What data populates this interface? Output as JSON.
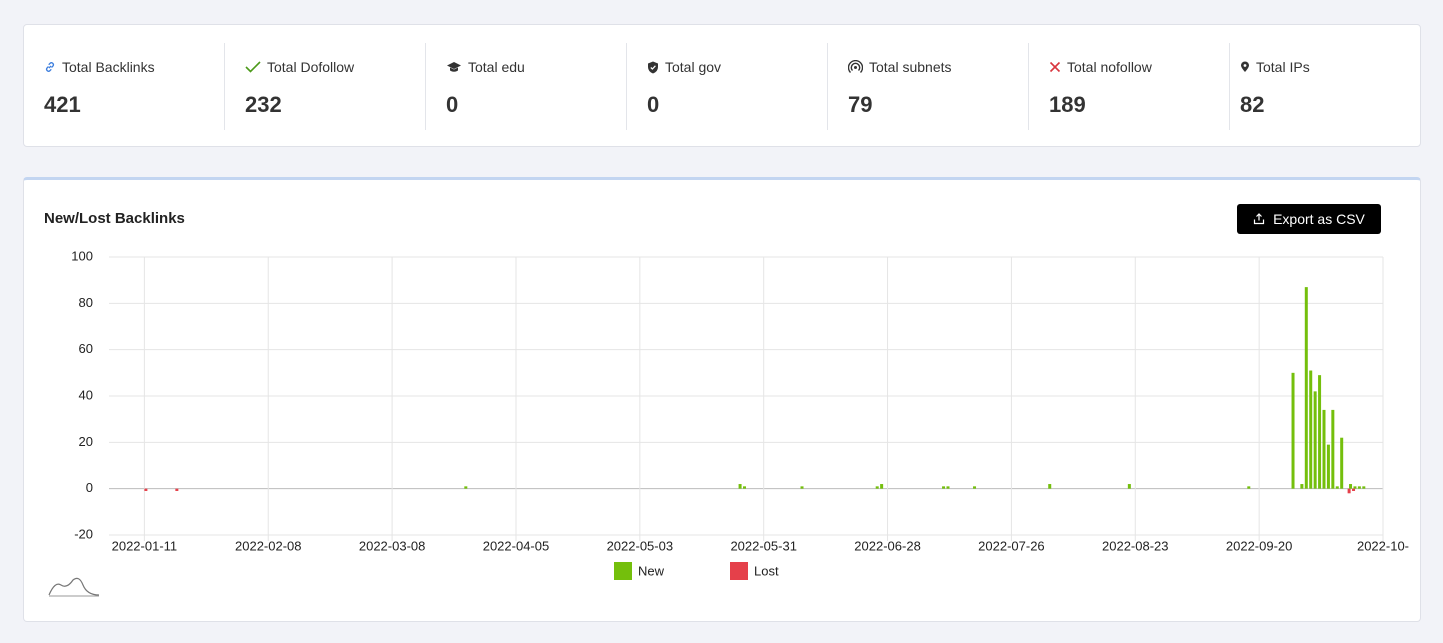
{
  "stats": [
    {
      "label": "Total Backlinks",
      "value": 421
    },
    {
      "label": "Total Dofollow",
      "value": 232
    },
    {
      "label": "Total edu",
      "value": 0
    },
    {
      "label": "Total gov",
      "value": 0
    },
    {
      "label": "Total subnets",
      "value": 79
    },
    {
      "label": "Total nofollow",
      "value": 189
    },
    {
      "label": "Total IPs",
      "value": 82
    }
  ],
  "export_button": "Export as CSV",
  "chart_data": {
    "type": "bar",
    "title": "New/Lost Backlinks",
    "x": [
      "2022-01-11",
      "2022-01-18",
      "2022-03-25",
      "2022-05-26",
      "2022-05-27",
      "2022-06-09",
      "2022-06-26",
      "2022-06-27",
      "2022-07-11",
      "2022-07-12",
      "2022-07-18",
      "2022-08-04",
      "2022-08-22",
      "2022-09-18",
      "2022-09-28",
      "2022-09-30",
      "2022-10-01",
      "2022-10-02",
      "2022-10-03",
      "2022-10-04",
      "2022-10-05",
      "2022-10-06",
      "2022-10-07",
      "2022-10-08",
      "2022-10-09",
      "2022-10-10",
      "2022-10-11",
      "2022-10-12",
      "2022-10-13",
      "2022-10-14"
    ],
    "series": [
      {
        "name": "New",
        "color": "#74bf0c",
        "values": [
          null,
          null,
          1,
          2,
          1,
          1,
          1,
          2,
          1,
          1,
          1,
          2,
          2,
          1,
          50,
          2,
          87,
          51,
          42,
          49,
          34,
          19,
          34,
          1,
          22,
          null,
          2,
          1,
          1,
          1
        ]
      },
      {
        "name": "Lost",
        "color": "#e5404a",
        "values": [
          -1,
          -1,
          null,
          null,
          null,
          null,
          null,
          null,
          null,
          null,
          null,
          null,
          null,
          null,
          null,
          null,
          null,
          null,
          null,
          null,
          null,
          null,
          null,
          null,
          null,
          -2,
          -1,
          null,
          null,
          null
        ]
      }
    ],
    "xlim": [
      "2022-01-03",
      "2022-10-18"
    ],
    "xticks": [
      "2022-01-11",
      "2022-02-08",
      "2022-03-08",
      "2022-04-05",
      "2022-05-03",
      "2022-05-31",
      "2022-06-28",
      "2022-07-26",
      "2022-08-23",
      "2022-09-20",
      {
        "value": "2022-10-18",
        "label": "2022-10-"
      }
    ],
    "ylim": [
      -20,
      100
    ],
    "yticks": [
      -20,
      0,
      20,
      40,
      60,
      80,
      100
    ],
    "grid": true,
    "legend": "bottom"
  }
}
